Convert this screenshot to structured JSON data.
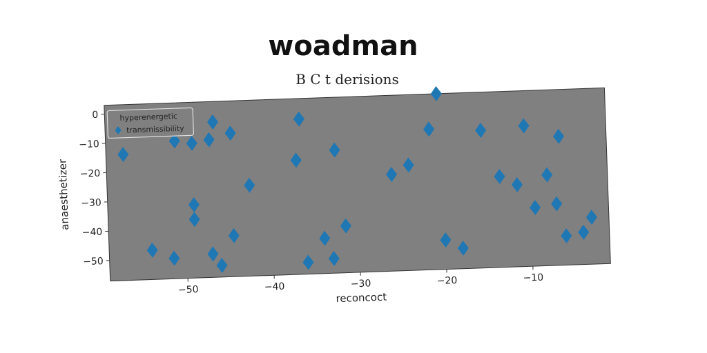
{
  "colors": {
    "plot_background": "#808080",
    "marker": "#1f77b4",
    "page_background": "#ffffff"
  },
  "chart_data": {
    "type": "scatter",
    "suptitle": "woadman",
    "title": "B C t derisions",
    "xlabel": "reconcoct",
    "ylabel": "anaesthetizer",
    "xlim": [
      -59,
      -1
    ],
    "ylim": [
      -57,
      3
    ],
    "xticks": [
      -50,
      -40,
      -30,
      -20,
      -10
    ],
    "xtick_labels": [
      "−50",
      "−40",
      "−30",
      "−20",
      "−10"
    ],
    "yticks": [
      0,
      -10,
      -20,
      -30,
      -40,
      -50
    ],
    "ytick_labels": [
      "0",
      "−10",
      "−20",
      "−30",
      "−40",
      "−50"
    ],
    "grid": false,
    "legend": {
      "placement": "top-left",
      "entries": [
        "hyperenergetic",
        "transmissibility"
      ]
    },
    "series": [
      {
        "name": "transmissibility",
        "marker": "diamond",
        "x": [
          -57,
          -54,
          -51.5,
          -51,
          -49,
          -49,
          -49,
          -47,
          -47,
          -46.5,
          -46,
          -44.5,
          -44.5,
          -42.5,
          -37,
          -36.5,
          -36,
          -34,
          -33,
          -32.5,
          -31.5,
          -26,
          -24,
          -21.5,
          -20.5,
          -20,
          -18,
          -15.5,
          -13.5,
          -11.5,
          -10.5,
          -9.5,
          -8,
          -7,
          -6.5,
          -6,
          -4,
          -3
        ],
        "y": [
          -14,
          -47,
          -50,
          -10,
          -11,
          -32,
          -37,
          -10,
          -49,
          -4,
          -53,
          -8,
          -43,
          -26,
          -18,
          -4,
          -53,
          -45,
          -52,
          -15,
          -41,
          -24,
          -21,
          -9,
          3,
          -47,
          -50,
          -10,
          -26,
          -29,
          -9,
          -37,
          -26,
          -36,
          -13,
          -47,
          -46,
          -41
        ]
      }
    ]
  }
}
